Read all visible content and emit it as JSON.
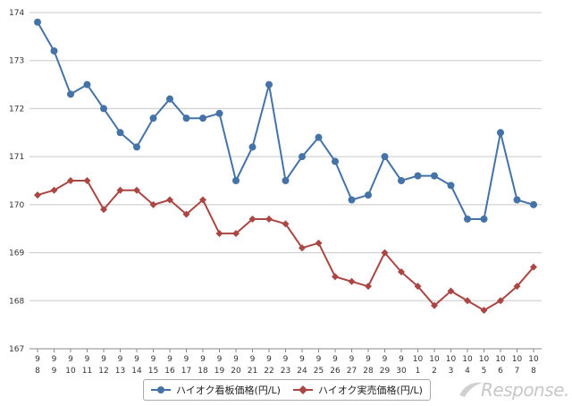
{
  "chart_data": {
    "type": "line",
    "categories": [
      [
        "9",
        "8"
      ],
      [
        "9",
        "9"
      ],
      [
        "9",
        "10"
      ],
      [
        "9",
        "11"
      ],
      [
        "9",
        "12"
      ],
      [
        "9",
        "13"
      ],
      [
        "9",
        "14"
      ],
      [
        "9",
        "15"
      ],
      [
        "9",
        "16"
      ],
      [
        "9",
        "17"
      ],
      [
        "9",
        "18"
      ],
      [
        "9",
        "19"
      ],
      [
        "9",
        "20"
      ],
      [
        "9",
        "21"
      ],
      [
        "9",
        "22"
      ],
      [
        "9",
        "23"
      ],
      [
        "9",
        "24"
      ],
      [
        "9",
        "25"
      ],
      [
        "9",
        "26"
      ],
      [
        "9",
        "27"
      ],
      [
        "9",
        "28"
      ],
      [
        "9",
        "29"
      ],
      [
        "9",
        "30"
      ],
      [
        "10",
        "1"
      ],
      [
        "10",
        "2"
      ],
      [
        "10",
        "3"
      ],
      [
        "10",
        "4"
      ],
      [
        "10",
        "5"
      ],
      [
        "10",
        "6"
      ],
      [
        "10",
        "7"
      ],
      [
        "10",
        "8"
      ]
    ],
    "series": [
      {
        "name": "ハイオク看板価格(円/L)",
        "color": "#4572a7",
        "marker": "circle",
        "values": [
          173.8,
          173.2,
          172.3,
          172.5,
          172.0,
          171.5,
          171.2,
          171.8,
          172.2,
          171.8,
          171.8,
          171.9,
          170.5,
          171.2,
          172.5,
          170.5,
          171.0,
          171.4,
          170.9,
          170.1,
          170.2,
          171.0,
          170.5,
          170.6,
          170.6,
          170.4,
          169.7,
          169.7,
          171.5,
          170.1,
          170.0
        ]
      },
      {
        "name": "ハイオク実売価格(円/L)",
        "color": "#aa4643",
        "marker": "diamond",
        "values": [
          170.2,
          170.3,
          170.5,
          170.5,
          169.9,
          170.3,
          170.3,
          170.0,
          170.1,
          169.8,
          170.1,
          169.4,
          169.4,
          169.7,
          169.7,
          169.6,
          169.1,
          169.2,
          168.5,
          168.4,
          168.3,
          169.0,
          168.6,
          168.3,
          167.9,
          168.2,
          168.0,
          167.8,
          168.0,
          168.3,
          168.7
        ]
      }
    ],
    "y_ticks": [
      "167",
      "168",
      "169",
      "170",
      "171",
      "172",
      "173",
      "174"
    ],
    "ylim": [
      167,
      174
    ],
    "grid": true,
    "legend_position": "bottom"
  },
  "watermark": {
    "text": "Response."
  }
}
